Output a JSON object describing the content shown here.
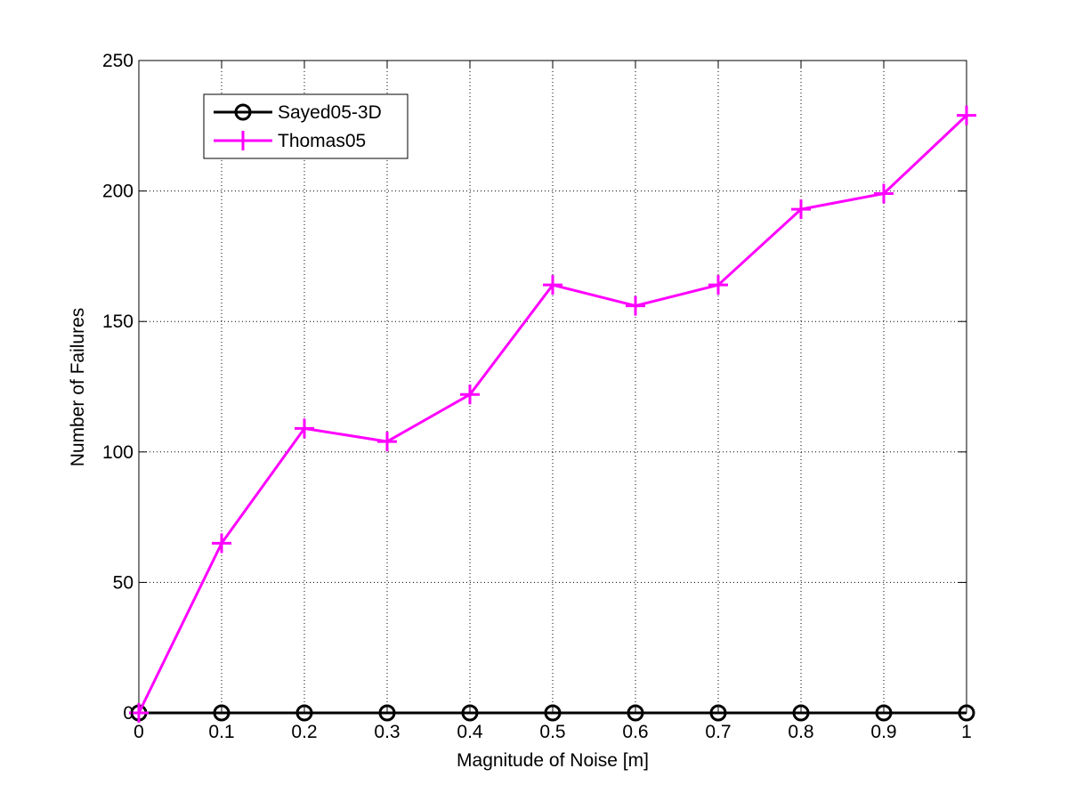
{
  "chart_data": {
    "type": "line",
    "title": "",
    "xlabel": "Magnitude of Noise [m]",
    "ylabel": "Number of Failures",
    "xlim": [
      0,
      1
    ],
    "ylim": [
      0,
      250
    ],
    "x": [
      0,
      0.1,
      0.2,
      0.3,
      0.4,
      0.5,
      0.6,
      0.7,
      0.8,
      0.9,
      1
    ],
    "xticks": [
      0,
      0.1,
      0.2,
      0.3,
      0.4,
      0.5,
      0.6,
      0.7,
      0.8,
      0.9,
      1
    ],
    "xtick_labels": [
      "0",
      "0.1",
      "0.2",
      "0.3",
      "0.4",
      "0.5",
      "0.6",
      "0.7",
      "0.8",
      "0.9",
      "1"
    ],
    "yticks": [
      0,
      50,
      100,
      150,
      200,
      250
    ],
    "ytick_labels": [
      "0",
      "50",
      "100",
      "150",
      "200",
      "250"
    ],
    "grid": true,
    "legend_position": "top-left",
    "series": [
      {
        "name": "Sayed05-3D",
        "color": "#000000",
        "marker": "circle",
        "values": [
          0,
          0,
          0,
          0,
          0,
          0,
          0,
          0,
          0,
          0,
          0
        ]
      },
      {
        "name": "Thomas05",
        "color": "#ff00ff",
        "marker": "plus",
        "values": [
          0,
          65,
          109,
          104,
          122,
          164,
          156,
          164,
          193,
          199,
          229
        ]
      }
    ]
  }
}
